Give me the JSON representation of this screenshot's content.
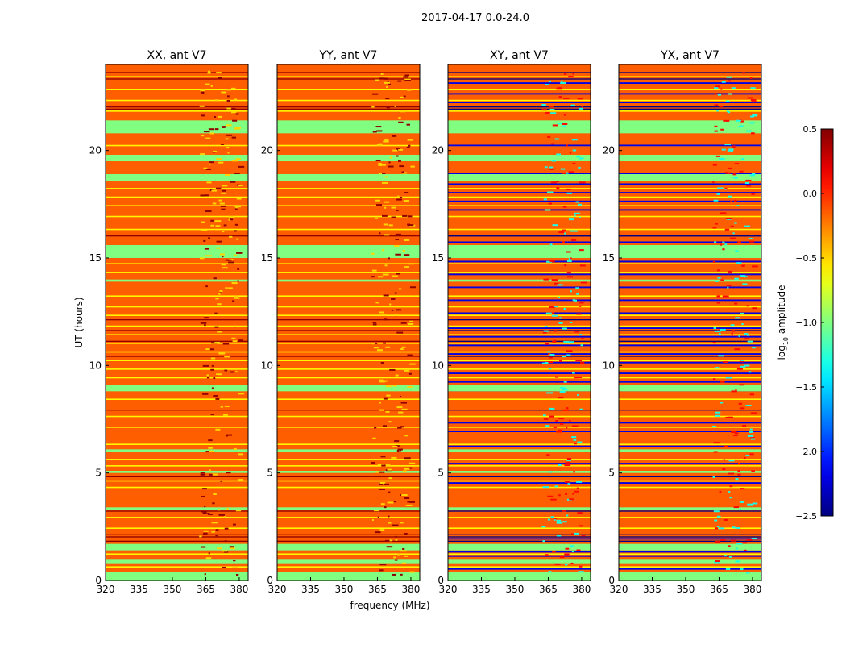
{
  "chart_data": {
    "type": "heatmap",
    "title": "2017-04-17 0.0-24.0",
    "xlabel": "frequency (MHz)",
    "ylabel": "UT (hours)",
    "xlim": [
      320,
      384
    ],
    "ylim": [
      0,
      24
    ],
    "xticks": [
      "320",
      "335",
      "350",
      "365",
      "380"
    ],
    "xtick_values": [
      320,
      335,
      350,
      365,
      380
    ],
    "yticks": [
      "0",
      "5",
      "10",
      "15",
      "20"
    ],
    "ytick_values": [
      0,
      5,
      10,
      15,
      20
    ],
    "colorbar": {
      "label": "log10 amplitude",
      "label_main": "log",
      "label_sub": "10",
      "label_rest": " amplitude",
      "range": [
        -2.5,
        0.5
      ],
      "ticks": [
        "0.5",
        "0.0",
        "−0.5",
        "−1.0",
        "−1.5",
        "−2.0",
        "−2.5"
      ],
      "tick_values": [
        0.5,
        0.0,
        -0.5,
        -1.0,
        -1.5,
        -2.0,
        -2.5
      ],
      "colormap": "jet"
    },
    "panels": [
      {
        "title": "XX, ant V7",
        "kind": "parallel",
        "base": -0.15
      },
      {
        "title": "YY, ant V7",
        "kind": "parallel",
        "base": -0.15
      },
      {
        "title": "XY, ant V7",
        "kind": "cross",
        "base": -0.15
      },
      {
        "title": "YX, ant V7",
        "kind": "cross",
        "base": -0.15
      }
    ],
    "green_bands_hours": [
      [
        0.0,
        0.4
      ],
      [
        0.8,
        1.0
      ],
      [
        1.4,
        1.7
      ],
      [
        3.3,
        3.4
      ],
      [
        5.0,
        5.1
      ],
      [
        6.0,
        6.1
      ],
      [
        8.8,
        9.1
      ],
      [
        13.9,
        14.0
      ],
      [
        15.0,
        15.6
      ],
      [
        18.6,
        18.9
      ],
      [
        19.5,
        19.8
      ],
      [
        20.8,
        21.4
      ]
    ],
    "green_value": -1.0,
    "yellow_lines_hours": [
      0.6,
      1.2,
      2.4,
      2.9,
      4.3,
      4.6,
      5.3,
      5.6,
      6.3,
      7.1,
      7.6,
      8.4,
      9.4,
      9.8,
      10.2,
      10.6,
      11.0,
      11.4,
      11.8,
      12.3,
      12.7,
      13.2,
      14.3,
      14.7,
      16.3,
      16.9,
      17.4,
      17.8,
      18.2,
      20.2,
      21.8,
      22.3,
      22.8,
      23.4
    ],
    "yellow_value": -0.6,
    "dark_lines_hours": [
      1.8,
      2.0,
      2.1,
      3.2,
      4.8,
      7.9,
      10.4,
      11.1,
      11.6,
      12.1,
      16.0,
      21.9,
      22.0,
      23.3,
      23.6
    ],
    "dark_value": 0.45,
    "cross_blue_lines_hours": [
      0.5,
      0.9,
      1.1,
      1.3,
      1.6,
      1.9,
      3.3,
      4.5,
      5.4,
      6.2,
      6.9,
      7.3,
      8.8,
      9.2,
      9.6,
      10.1,
      10.5,
      10.9,
      11.3,
      11.7,
      12.4,
      13.0,
      13.6,
      14.2,
      14.8,
      15.3,
      15.7,
      16.0,
      17.2,
      17.6,
      18.0,
      18.4,
      18.9,
      20.2,
      21.0,
      22.2,
      22.6,
      23.1
    ],
    "cross_blue_value": -2.2,
    "rfi_band_mhz": [
      362,
      380
    ]
  }
}
